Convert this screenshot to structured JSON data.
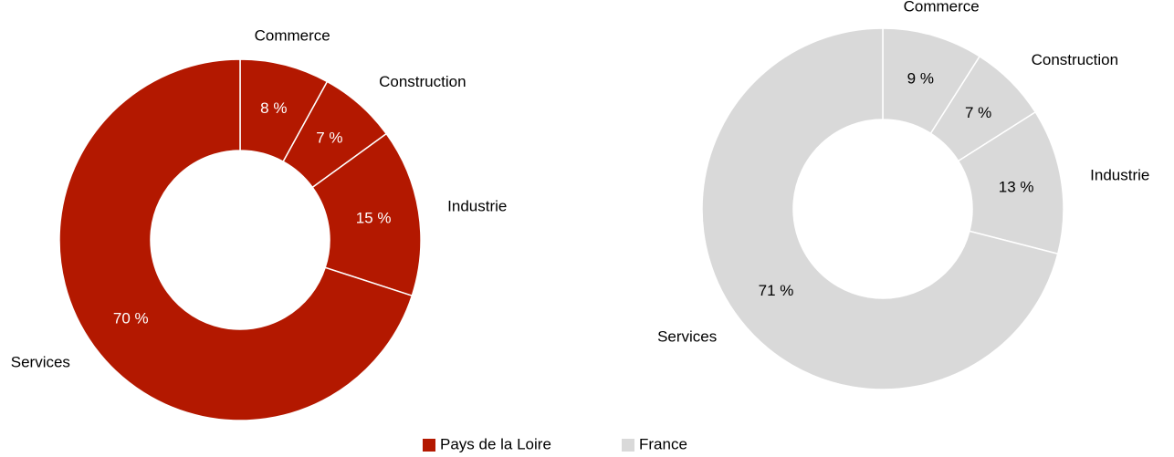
{
  "chart_data": [
    {
      "type": "pie",
      "name": "Pays de la Loire",
      "color": "#b31800",
      "label_color": "#ffffff",
      "categories": [
        "Commerce",
        "Construction",
        "Industrie",
        "Services"
      ],
      "values": [
        8,
        7,
        15,
        70
      ],
      "value_labels": [
        "8 %",
        "7 %",
        "15 %",
        "70 %"
      ]
    },
    {
      "type": "pie",
      "name": "France",
      "color": "#d9d9d9",
      "label_color": "#000000",
      "categories": [
        "Commerce",
        "Construction",
        "Industrie",
        "Services"
      ],
      "values": [
        9,
        7,
        13,
        71
      ],
      "value_labels": [
        "9 %",
        "7 %",
        "13 %",
        "71 %"
      ]
    }
  ]
}
